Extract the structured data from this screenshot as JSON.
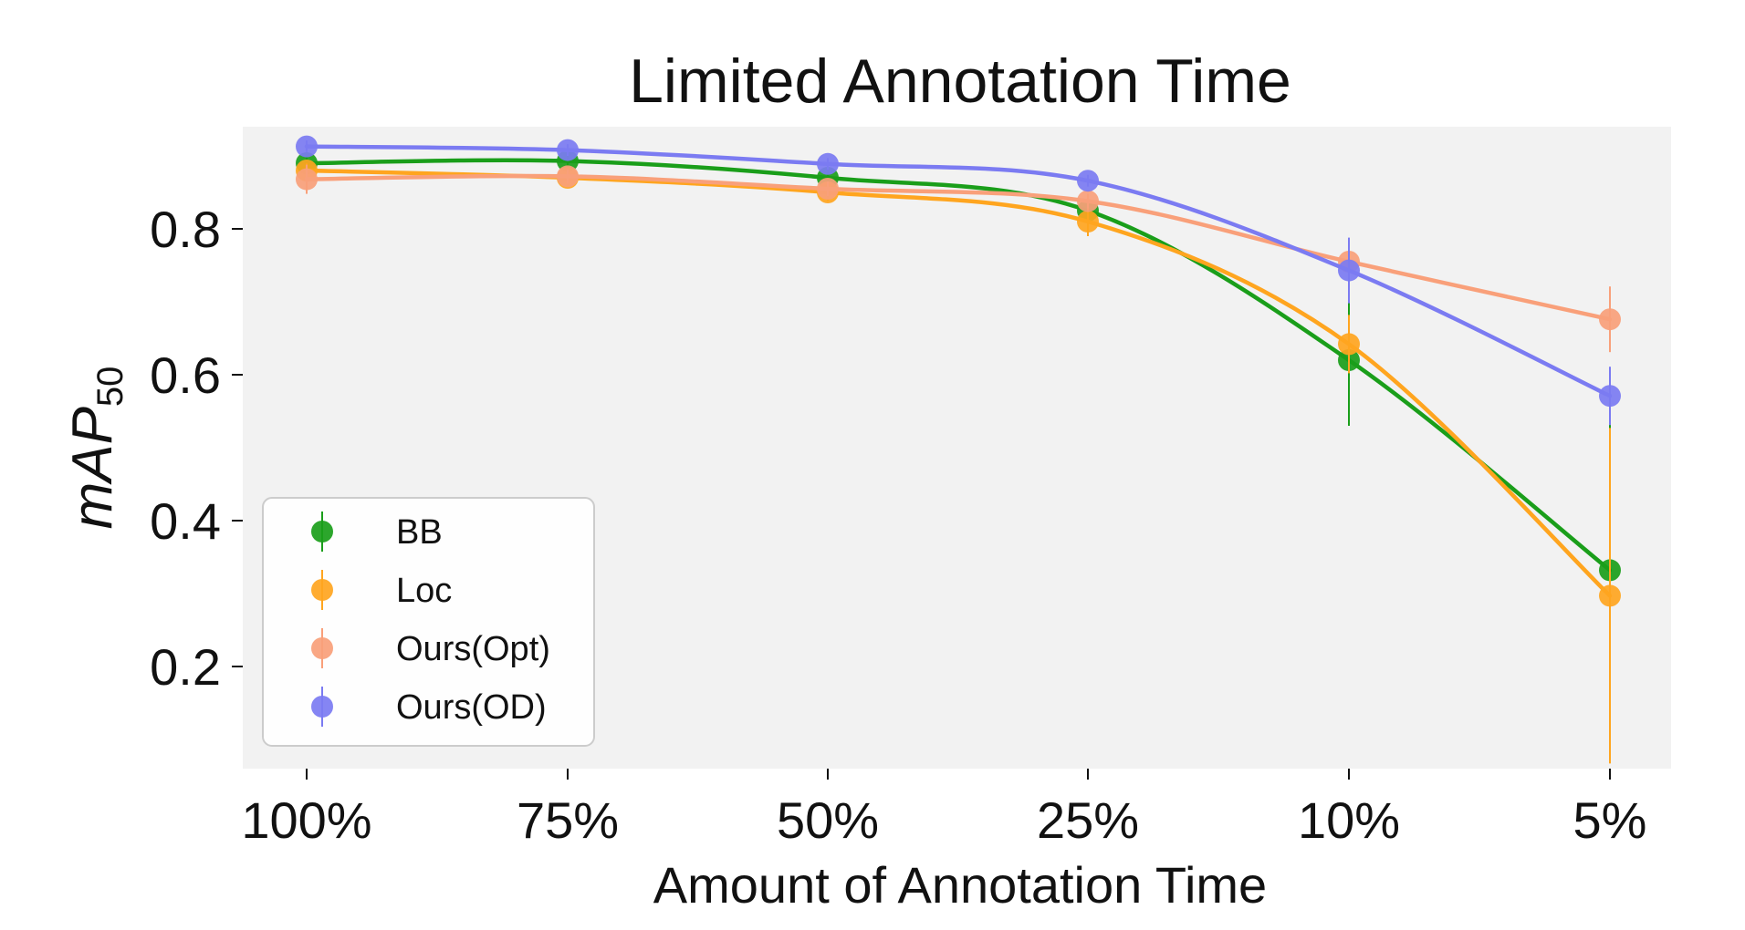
{
  "chart_data": {
    "type": "line",
    "title": "Limited Annotation Time",
    "xlabel": "Amount of Annotation Time",
    "ylabel_main": "mAP",
    "ylabel_sub": "50",
    "categories": [
      "100%",
      "75%",
      "50%",
      "25%",
      "10%",
      "5%"
    ],
    "ylim": [
      0.06,
      0.94
    ],
    "yticks": [
      "0.2",
      "0.4",
      "0.6",
      "0.8"
    ],
    "ytick_values": [
      0.2,
      0.4,
      0.6,
      0.8
    ],
    "grid": false,
    "legend_position": "lower-left",
    "series": [
      {
        "name": "BB",
        "color": "#1a9e1a",
        "values": [
          0.89,
          0.893,
          0.87,
          0.825,
          0.62,
          0.332
        ],
        "errors": [
          0.01,
          0.01,
          0.012,
          0.015,
          0.09,
          0.26
        ]
      },
      {
        "name": "Loc",
        "color": "#ffa51f",
        "values": [
          0.88,
          0.87,
          0.85,
          0.81,
          0.642,
          0.297
        ],
        "errors": [
          0.01,
          0.01,
          0.012,
          0.02,
          0.04,
          0.23
        ]
      },
      {
        "name": "Ours(Opt)",
        "color": "#f9a07a",
        "values": [
          0.868,
          0.872,
          0.855,
          0.838,
          0.755,
          0.676
        ],
        "errors": [
          0.02,
          0.01,
          0.01,
          0.01,
          0.03,
          0.045
        ]
      },
      {
        "name": "Ours(OD)",
        "color": "#7b7bf2",
        "values": [
          0.913,
          0.908,
          0.889,
          0.866,
          0.743,
          0.571
        ],
        "errors": [
          0.008,
          0.008,
          0.008,
          0.008,
          0.045,
          0.04
        ]
      }
    ]
  }
}
